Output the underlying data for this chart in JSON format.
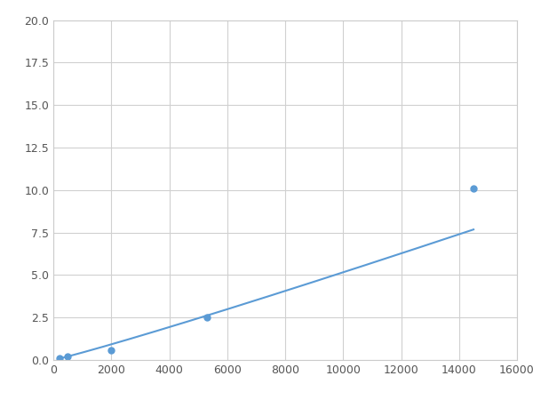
{
  "x": [
    200,
    500,
    2000,
    5300,
    14500
  ],
  "y": [
    0.1,
    0.2,
    0.6,
    2.5,
    10.1
  ],
  "line_color": "#5b9bd5",
  "marker_color": "#5b9bd5",
  "marker_size": 5,
  "marker_style": "o",
  "xlim": [
    0,
    16000
  ],
  "ylim": [
    0,
    20
  ],
  "xticks": [
    0,
    2000,
    4000,
    6000,
    8000,
    10000,
    12000,
    14000,
    16000
  ],
  "yticks": [
    0.0,
    2.5,
    5.0,
    7.5,
    10.0,
    12.5,
    15.0,
    17.5,
    20.0
  ],
  "grid": true,
  "background_color": "#ffffff",
  "line_width": 1.5
}
